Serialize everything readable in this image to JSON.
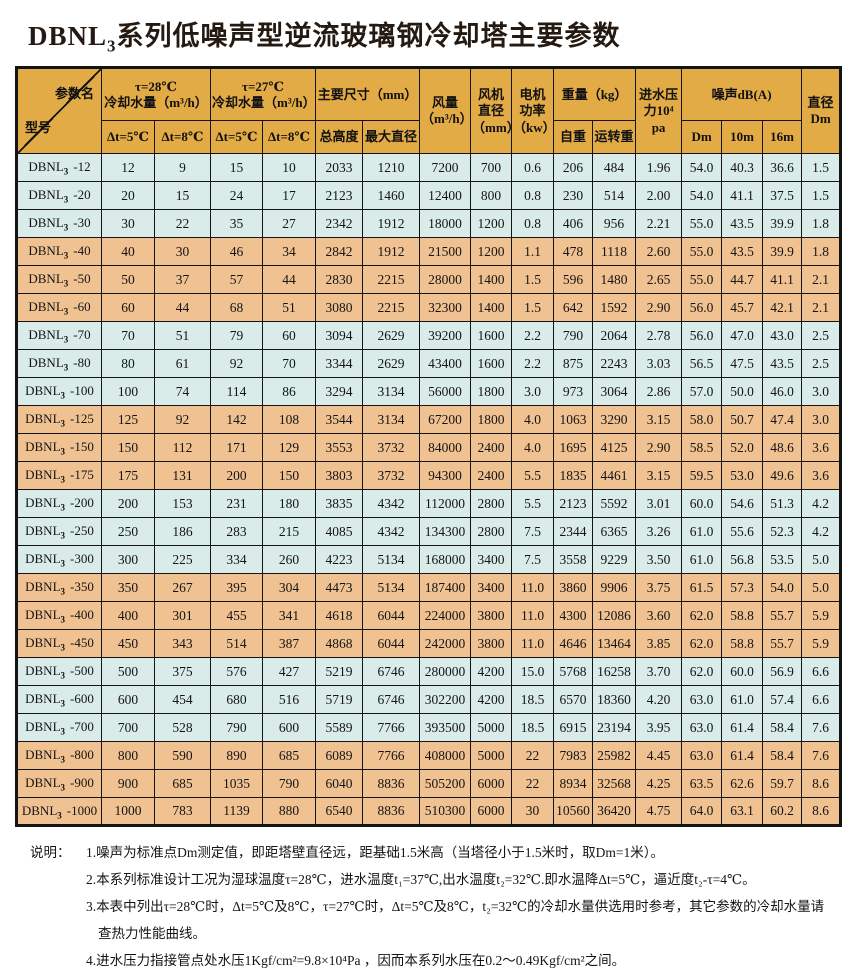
{
  "title": {
    "prefix": "DBNL",
    "sub": "3",
    "rest": "系列低噪声型逆流玻璃钢冷却塔主要参数"
  },
  "table": {
    "corner": {
      "top_label": "参数名",
      "bottom_label": "型号"
    },
    "groups": {
      "t28": "τ=28℃\n冷却水量（m³/h）",
      "t27": "τ=27℃\n冷却水量（m³/h）",
      "size": "主要尺寸（mm）",
      "airflow": "风量\n（m³/h）",
      "fan_diameter": "风机\n直径\n（mm）",
      "motor_power": "电机\n功率\n（kw）",
      "weight": "重量（kg）",
      "inlet_pressure": "进水压\n力10⁴\npa",
      "noise": "噪声dB(A)",
      "diameter": "直径\nDm"
    },
    "subheaders": {
      "dt5_28": "Δt=5℃",
      "dt8_28": "Δt=8℃",
      "dt5_27": "Δt=5℃",
      "dt8_27": "Δt=8℃",
      "total_height": "总高度",
      "max_diameter": "最大直径",
      "self_weight": "自重",
      "running_weight": "运转重",
      "noise_dm": "Dm",
      "noise_10m": "10m",
      "noise_16m": "16m"
    },
    "rows": [
      {
        "model_prefix": "DBNL",
        "model_sub": "3",
        "model_size": "-12",
        "tone": "blue",
        "values": [
          "12",
          "9",
          "15",
          "10",
          "2033",
          "1210",
          "7200",
          "700",
          "0.6",
          "206",
          "484",
          "1.96",
          "54.0",
          "40.3",
          "36.6",
          "1.5"
        ]
      },
      {
        "model_prefix": "DBNL",
        "model_sub": "3",
        "model_size": "-20",
        "tone": "blue",
        "values": [
          "20",
          "15",
          "24",
          "17",
          "2123",
          "1460",
          "12400",
          "800",
          "0.8",
          "230",
          "514",
          "2.00",
          "54.0",
          "41.1",
          "37.5",
          "1.5"
        ]
      },
      {
        "model_prefix": "DBNL",
        "model_sub": "3",
        "model_size": "-30",
        "tone": "blue",
        "values": [
          "30",
          "22",
          "35",
          "27",
          "2342",
          "1912",
          "18000",
          "1200",
          "0.8",
          "406",
          "956",
          "2.21",
          "55.0",
          "43.5",
          "39.9",
          "1.8"
        ]
      },
      {
        "model_prefix": "DBNL",
        "model_sub": "3",
        "model_size": "-40",
        "tone": "orange",
        "values": [
          "40",
          "30",
          "46",
          "34",
          "2842",
          "1912",
          "21500",
          "1200",
          "1.1",
          "478",
          "1118",
          "2.60",
          "55.0",
          "43.5",
          "39.9",
          "1.8"
        ]
      },
      {
        "model_prefix": "DBNL",
        "model_sub": "3",
        "model_size": "-50",
        "tone": "orange",
        "values": [
          "50",
          "37",
          "57",
          "44",
          "2830",
          "2215",
          "28000",
          "1400",
          "1.5",
          "596",
          "1480",
          "2.65",
          "55.0",
          "44.7",
          "41.1",
          "2.1"
        ]
      },
      {
        "model_prefix": "DBNL",
        "model_sub": "3",
        "model_size": "-60",
        "tone": "orange",
        "values": [
          "60",
          "44",
          "68",
          "51",
          "3080",
          "2215",
          "32300",
          "1400",
          "1.5",
          "642",
          "1592",
          "2.90",
          "56.0",
          "45.7",
          "42.1",
          "2.1"
        ]
      },
      {
        "model_prefix": "DBNL",
        "model_sub": "3",
        "model_size": "-70",
        "tone": "blue",
        "values": [
          "70",
          "51",
          "79",
          "60",
          "3094",
          "2629",
          "39200",
          "1600",
          "2.2",
          "790",
          "2064",
          "2.78",
          "56.0",
          "47.0",
          "43.0",
          "2.5"
        ]
      },
      {
        "model_prefix": "DBNL",
        "model_sub": "3",
        "model_size": "-80",
        "tone": "blue",
        "values": [
          "80",
          "61",
          "92",
          "70",
          "3344",
          "2629",
          "43400",
          "1600",
          "2.2",
          "875",
          "2243",
          "3.03",
          "56.5",
          "47.5",
          "43.5",
          "2.5"
        ]
      },
      {
        "model_prefix": "DBNL",
        "model_sub": "3",
        "model_size": "-100",
        "tone": "blue",
        "values": [
          "100",
          "74",
          "114",
          "86",
          "3294",
          "3134",
          "56000",
          "1800",
          "3.0",
          "973",
          "3064",
          "2.86",
          "57.0",
          "50.0",
          "46.0",
          "3.0"
        ]
      },
      {
        "model_prefix": "DBNL",
        "model_sub": "3",
        "model_size": "-125",
        "tone": "orange",
        "values": [
          "125",
          "92",
          "142",
          "108",
          "3544",
          "3134",
          "67200",
          "1800",
          "4.0",
          "1063",
          "3290",
          "3.15",
          "58.0",
          "50.7",
          "47.4",
          "3.0"
        ]
      },
      {
        "model_prefix": "DBNL",
        "model_sub": "3",
        "model_size": "-150",
        "tone": "orange",
        "values": [
          "150",
          "112",
          "171",
          "129",
          "3553",
          "3732",
          "84000",
          "2400",
          "4.0",
          "1695",
          "4125",
          "2.90",
          "58.5",
          "52.0",
          "48.6",
          "3.6"
        ]
      },
      {
        "model_prefix": "DBNL",
        "model_sub": "3",
        "model_size": "-175",
        "tone": "orange",
        "values": [
          "175",
          "131",
          "200",
          "150",
          "3803",
          "3732",
          "94300",
          "2400",
          "5.5",
          "1835",
          "4461",
          "3.15",
          "59.5",
          "53.0",
          "49.6",
          "3.6"
        ]
      },
      {
        "model_prefix": "DBNL",
        "model_sub": "3",
        "model_size": "-200",
        "tone": "blue",
        "values": [
          "200",
          "153",
          "231",
          "180",
          "3835",
          "4342",
          "112000",
          "2800",
          "5.5",
          "2123",
          "5592",
          "3.01",
          "60.0",
          "54.6",
          "51.3",
          "4.2"
        ]
      },
      {
        "model_prefix": "DBNL",
        "model_sub": "3",
        "model_size": "-250",
        "tone": "blue",
        "values": [
          "250",
          "186",
          "283",
          "215",
          "4085",
          "4342",
          "134300",
          "2800",
          "7.5",
          "2344",
          "6365",
          "3.26",
          "61.0",
          "55.6",
          "52.3",
          "4.2"
        ]
      },
      {
        "model_prefix": "DBNL",
        "model_sub": "3",
        "model_size": "-300",
        "tone": "blue",
        "values": [
          "300",
          "225",
          "334",
          "260",
          "4223",
          "5134",
          "168000",
          "3400",
          "7.5",
          "3558",
          "9229",
          "3.50",
          "61.0",
          "56.8",
          "53.5",
          "5.0"
        ]
      },
      {
        "model_prefix": "DBNL",
        "model_sub": "3",
        "model_size": "-350",
        "tone": "orange",
        "values": [
          "350",
          "267",
          "395",
          "304",
          "4473",
          "5134",
          "187400",
          "3400",
          "11.0",
          "3860",
          "9906",
          "3.75",
          "61.5",
          "57.3",
          "54.0",
          "5.0"
        ]
      },
      {
        "model_prefix": "DBNL",
        "model_sub": "3",
        "model_size": "-400",
        "tone": "orange",
        "values": [
          "400",
          "301",
          "455",
          "341",
          "4618",
          "6044",
          "224000",
          "3800",
          "11.0",
          "4300",
          "12086",
          "3.60",
          "62.0",
          "58.8",
          "55.7",
          "5.9"
        ]
      },
      {
        "model_prefix": "DBNL",
        "model_sub": "3",
        "model_size": "-450",
        "tone": "orange",
        "values": [
          "450",
          "343",
          "514",
          "387",
          "4868",
          "6044",
          "242000",
          "3800",
          "11.0",
          "4646",
          "13464",
          "3.85",
          "62.0",
          "58.8",
          "55.7",
          "5.9"
        ]
      },
      {
        "model_prefix": "DBNL",
        "model_sub": "3",
        "model_size": "-500",
        "tone": "blue",
        "values": [
          "500",
          "375",
          "576",
          "427",
          "5219",
          "6746",
          "280000",
          "4200",
          "15.0",
          "5768",
          "16258",
          "3.70",
          "62.0",
          "60.0",
          "56.9",
          "6.6"
        ]
      },
      {
        "model_prefix": "DBNL",
        "model_sub": "3",
        "model_size": "-600",
        "tone": "blue",
        "values": [
          "600",
          "454",
          "680",
          "516",
          "5719",
          "6746",
          "302200",
          "4200",
          "18.5",
          "6570",
          "18360",
          "4.20",
          "63.0",
          "61.0",
          "57.4",
          "6.6"
        ]
      },
      {
        "model_prefix": "DBNL",
        "model_sub": "3",
        "model_size": "-700",
        "tone": "blue",
        "values": [
          "700",
          "528",
          "790",
          "600",
          "5589",
          "7766",
          "393500",
          "5000",
          "18.5",
          "6915",
          "23194",
          "3.95",
          "63.0",
          "61.4",
          "58.4",
          "7.6"
        ]
      },
      {
        "model_prefix": "DBNL",
        "model_sub": "3",
        "model_size": "-800",
        "tone": "orange",
        "values": [
          "800",
          "590",
          "890",
          "685",
          "6089",
          "7766",
          "408000",
          "5000",
          "22",
          "7983",
          "25982",
          "4.45",
          "63.0",
          "61.4",
          "58.4",
          "7.6"
        ]
      },
      {
        "model_prefix": "DBNL",
        "model_sub": "3",
        "model_size": "-900",
        "tone": "orange",
        "values": [
          "900",
          "685",
          "1035",
          "790",
          "6040",
          "8836",
          "505200",
          "6000",
          "22",
          "8934",
          "32568",
          "4.25",
          "63.5",
          "62.6",
          "59.7",
          "8.6"
        ]
      },
      {
        "model_prefix": "DBNL",
        "model_sub": "3",
        "model_size": "-1000",
        "tone": "orange",
        "values": [
          "1000",
          "783",
          "1139",
          "880",
          "6540",
          "8836",
          "510300",
          "6000",
          "30",
          "10560",
          "36420",
          "4.75",
          "64.0",
          "63.1",
          "60.2",
          "8.6"
        ]
      }
    ]
  },
  "notes": {
    "label": "说明：",
    "items": [
      "1.噪声为标准点Dm测定值，即距塔壁直径远，距基础1.5米高（当塔径小于1.5米时，取Dm=1米）。",
      "2.本系列标准设计工况为湿球温度τ=28℃，进水温度t₁=37℃,出水温度t₂=32℃.即水温降Δt=5℃，逼近度t₂-τ=4℃。",
      "3.本表中列出τ=28℃时，Δt=5℃及8℃，τ=27℃时，Δt=5℃及8℃，t₂=32℃的冷却水量供选用时参考，其它参数的冷却水量请查热力性能曲线。",
      "4.进水压力指接管点处水压1Kgf/cm²=9.8×10⁴Pa ，因而本系列水压在0.2～0.49Kgf/cm²之间。"
    ]
  },
  "colors": {
    "header_bg": "#E2AB45",
    "row_blue": "#D9ECEA",
    "row_orange": "#F1C291",
    "grid": "#141414"
  }
}
